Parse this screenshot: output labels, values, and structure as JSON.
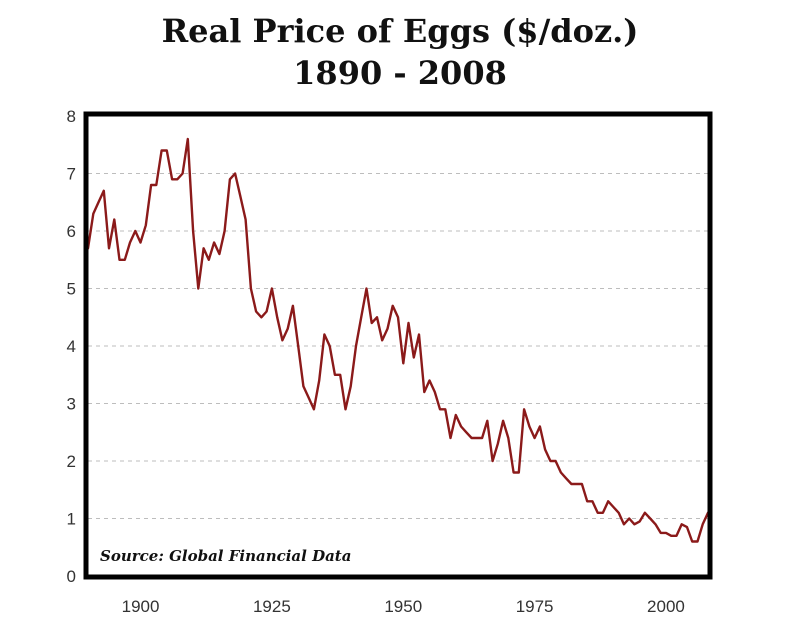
{
  "chart_data": {
    "type": "line",
    "title": "Real Price of Eggs ($/doz.)",
    "subtitle": "1890 - 2008",
    "source": "Source: Global Financial Data",
    "xlim": [
      1890,
      2008
    ],
    "ylim": [
      0,
      8
    ],
    "xticks": [
      1900,
      1925,
      1950,
      1975,
      2000
    ],
    "yticks": [
      0,
      1,
      2,
      3,
      4,
      5,
      6,
      7,
      8
    ],
    "grid": "horizontal dashed",
    "line_color": "#8b1a1a",
    "series": [
      {
        "x": [
          1890,
          1891,
          1892,
          1893,
          1894,
          1895,
          1896,
          1897,
          1898,
          1899,
          1900,
          1901,
          1902,
          1903,
          1904,
          1905,
          1906,
          1907,
          1908,
          1909,
          1910,
          1911,
          1912,
          1913,
          1914,
          1915,
          1916,
          1917,
          1918,
          1919,
          1920,
          1921,
          1922,
          1923,
          1924,
          1925,
          1926,
          1927,
          1928,
          1929,
          1930,
          1931,
          1932,
          1933,
          1934,
          1935,
          1936,
          1937,
          1938,
          1939,
          1940,
          1941,
          1942,
          1943,
          1944,
          1945,
          1946,
          1947,
          1948,
          1949,
          1950,
          1951,
          1952,
          1953,
          1954,
          1955,
          1956,
          1957,
          1958,
          1959,
          1960,
          1961,
          1962,
          1963,
          1964,
          1965,
          1966,
          1967,
          1968,
          1969,
          1970,
          1971,
          1972,
          1973,
          1974,
          1975,
          1976,
          1977,
          1978,
          1979,
          1980,
          1981,
          1982,
          1983,
          1984,
          1985,
          1986,
          1987,
          1988,
          1989,
          1990,
          1991,
          1992,
          1993,
          1994,
          1995,
          1996,
          1997,
          1998,
          1999,
          2000,
          2001,
          2002,
          2003,
          2004,
          2005,
          2006,
          2007,
          2008
        ],
        "values": [
          5.7,
          6.3,
          6.5,
          6.7,
          5.7,
          6.2,
          5.5,
          5.5,
          5.8,
          6.0,
          5.8,
          6.1,
          6.8,
          6.8,
          7.4,
          7.4,
          6.9,
          6.9,
          7.0,
          7.6,
          6.0,
          5.0,
          5.7,
          5.5,
          5.8,
          5.6,
          6.0,
          6.9,
          7.0,
          6.6,
          6.2,
          5.0,
          4.6,
          4.5,
          4.6,
          5.0,
          4.5,
          4.1,
          4.3,
          4.7,
          4.0,
          3.3,
          3.1,
          2.9,
          3.4,
          4.2,
          4.0,
          3.5,
          3.5,
          2.9,
          3.3,
          4.0,
          4.5,
          5.0,
          4.4,
          4.5,
          4.1,
          4.3,
          4.7,
          4.5,
          3.7,
          4.4,
          3.8,
          4.2,
          3.2,
          3.4,
          3.2,
          2.9,
          2.9,
          2.4,
          2.8,
          2.6,
          2.5,
          2.4,
          2.4,
          2.4,
          2.7,
          2.0,
          2.3,
          2.7,
          2.4,
          1.8,
          1.8,
          2.9,
          2.6,
          2.4,
          2.6,
          2.2,
          2.0,
          2.0,
          1.8,
          1.7,
          1.6,
          1.6,
          1.6,
          1.3,
          1.3,
          1.1,
          1.1,
          1.3,
          1.2,
          1.1,
          0.9,
          1.0,
          0.9,
          0.95,
          1.1,
          1.0,
          0.9,
          0.75,
          0.75,
          0.7,
          0.7,
          0.9,
          0.85,
          0.6,
          0.6,
          0.9,
          1.1
        ]
      }
    ]
  }
}
